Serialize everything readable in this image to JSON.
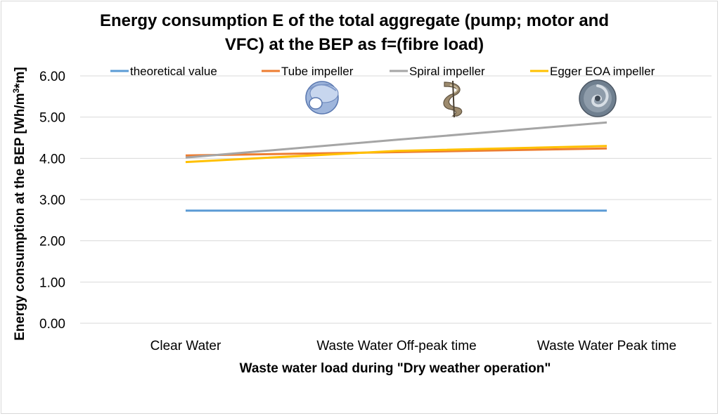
{
  "chart_data": {
    "type": "line",
    "title_line1": "Energy consumption E of the total aggregate (pump; motor and",
    "title_line2": "VFC) at the BEP as f=(fibre load)",
    "xlabel": "Waste water load during \"Dry weather operation\"",
    "ylabel_main": "Energy consumption at the BEP [Wh/m",
    "ylabel_sup": "3",
    "ylabel_tail": "*m]",
    "categories": [
      "Clear Water",
      "Waste Water Off-peak time",
      "Waste Water Peak time"
    ],
    "ylim": [
      0,
      6
    ],
    "yticks": [
      "0.00",
      "1.00",
      "2.00",
      "3.00",
      "4.00",
      "5.00",
      "6.00"
    ],
    "grid": true,
    "legend_position": "top",
    "series": [
      {
        "name": "theoretical value",
        "color": "#5b9bd5",
        "values": [
          2.73,
          2.73,
          2.73
        ]
      },
      {
        "name": "Tube impeller",
        "color": "#ed7d31",
        "values": [
          4.07,
          4.15,
          4.24
        ]
      },
      {
        "name": "Spiral impeller",
        "color": "#a5a5a5",
        "values": [
          4.02,
          4.45,
          4.87
        ]
      },
      {
        "name": "Egger EOA impeller",
        "color": "#ffc000",
        "values": [
          3.91,
          4.18,
          4.3
        ]
      }
    ],
    "impeller_icons": [
      "tube-impeller-icon",
      "spiral-impeller-icon",
      "egger-eoa-impeller-icon"
    ]
  }
}
